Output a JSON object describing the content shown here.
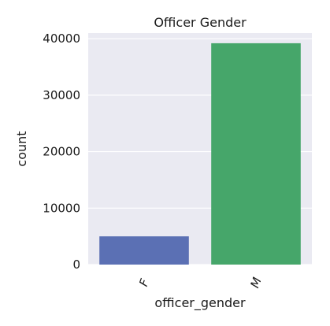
{
  "chart_data": {
    "type": "bar",
    "title": "Officer Gender",
    "xlabel": "officer_gender",
    "ylabel": "count",
    "categories": [
      "F",
      "M"
    ],
    "values": [
      5000,
      39200
    ],
    "ylim": [
      0,
      41000
    ],
    "yticks": [
      0,
      10000,
      20000,
      30000,
      40000
    ],
    "colors": [
      "#5b70b4",
      "#46a66a"
    ],
    "background": "#eaeaf2",
    "grid": true
  }
}
